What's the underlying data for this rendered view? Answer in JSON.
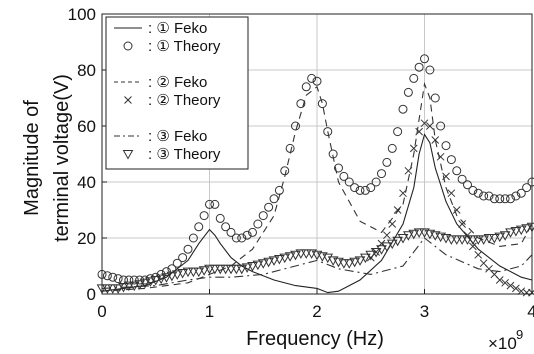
{
  "chart_data": {
    "type": "line",
    "xlabel": "Frequency (Hz)",
    "ylabel_lines": [
      "Magnitude of",
      "terminal voltage(V)"
    ],
    "x_exponent_label": "×10",
    "x_exponent_power": "9",
    "xlim": [
      0,
      4
    ],
    "ylim": [
      0,
      100
    ],
    "xticks": [
      "0",
      "1",
      "2",
      "3",
      "4"
    ],
    "yticks": [
      "0",
      "20",
      "40",
      "60",
      "80",
      "100"
    ],
    "grid": true,
    "legend_position": "top-left",
    "series": [
      {
        "name": ": ① Feko",
        "style": "solid",
        "color": "#222222",
        "x": [
          0,
          0.2,
          0.4,
          0.6,
          0.8,
          0.9,
          1.0,
          1.05,
          1.1,
          1.2,
          1.3,
          1.4,
          1.6,
          1.8,
          2.0,
          2.1,
          2.2,
          2.4,
          2.6,
          2.8,
          2.9,
          2.95,
          3.0,
          3.05,
          3.1,
          3.2,
          3.3,
          3.5,
          3.7,
          3.9,
          4.0
        ],
        "y": [
          1,
          2,
          3,
          6,
          12,
          18,
          23,
          21,
          18,
          13,
          10,
          8,
          5,
          3,
          2,
          0.5,
          1,
          5,
          12,
          25,
          38,
          50,
          57,
          54,
          45,
          33,
          25,
          16,
          10,
          6,
          5
        ]
      },
      {
        "name": ": ① Theory",
        "style": "marker-circle",
        "color": "#333333",
        "x": [
          0,
          0.05,
          0.1,
          0.15,
          0.2,
          0.25,
          0.3,
          0.35,
          0.4,
          0.45,
          0.5,
          0.55,
          0.6,
          0.65,
          0.7,
          0.75,
          0.8,
          0.85,
          0.9,
          0.95,
          1.0,
          1.05,
          1.1,
          1.15,
          1.2,
          1.25,
          1.3,
          1.35,
          1.4,
          1.45,
          1.5,
          1.55,
          1.6,
          1.65,
          1.7,
          1.75,
          1.8,
          1.85,
          1.9,
          1.95,
          2.0,
          2.05,
          2.1,
          2.15,
          2.2,
          2.25,
          2.3,
          2.35,
          2.4,
          2.45,
          2.5,
          2.55,
          2.6,
          2.65,
          2.7,
          2.75,
          2.8,
          2.85,
          2.9,
          2.95,
          3.0,
          3.05,
          3.1,
          3.15,
          3.2,
          3.25,
          3.3,
          3.35,
          3.4,
          3.45,
          3.5,
          3.55,
          3.6,
          3.65,
          3.7,
          3.75,
          3.8,
          3.85,
          3.9,
          3.95,
          4.0
        ],
        "y": [
          7,
          6.5,
          6,
          5.5,
          5,
          5,
          5,
          5,
          5,
          5.5,
          6,
          7,
          8,
          9,
          11,
          13,
          16,
          20,
          24,
          28,
          32,
          32,
          27,
          24,
          22,
          20,
          20,
          21,
          22,
          25,
          28,
          31,
          34,
          37,
          44,
          52,
          60,
          68,
          74,
          77,
          76,
          68,
          58,
          50,
          45,
          42,
          40,
          38,
          37,
          37,
          38,
          40,
          43,
          47,
          52,
          58,
          66,
          72,
          77,
          81,
          84,
          80,
          70,
          60,
          53,
          48,
          44,
          41,
          39,
          37,
          36,
          35,
          35,
          34,
          34,
          34,
          34,
          35,
          36,
          38,
          40
        ]
      },
      {
        "name": ": ② Feko",
        "style": "dashed",
        "color": "#333333",
        "x": [
          0,
          0.4,
          0.8,
          1.0,
          1.2,
          1.4,
          1.6,
          1.7,
          1.8,
          1.9,
          2.0,
          2.05,
          2.1,
          2.2,
          2.4,
          2.6,
          2.8,
          2.9,
          3.0,
          3.05,
          3.1,
          3.2,
          3.3,
          3.5,
          3.7,
          3.9,
          4.0
        ],
        "y": [
          1,
          2,
          4,
          7,
          10,
          16,
          28,
          42,
          58,
          71,
          74,
          68,
          58,
          40,
          26,
          22,
          32,
          50,
          75,
          70,
          55,
          38,
          28,
          20,
          17,
          18,
          25
        ]
      },
      {
        "name": ": ② Theory",
        "style": "marker-x",
        "color": "#333333",
        "x": [
          2.5,
          2.55,
          2.6,
          2.65,
          2.7,
          2.75,
          2.8,
          2.85,
          2.9,
          2.95,
          3.0,
          3.05,
          3.1,
          3.15,
          3.2,
          3.25,
          3.3,
          3.35,
          3.4,
          3.45,
          3.5,
          3.55,
          3.6,
          3.65,
          3.7,
          3.75,
          3.8,
          3.85,
          3.9,
          3.95,
          4.0
        ],
        "y": [
          13,
          15,
          18,
          21,
          25,
          30,
          36,
          44,
          52,
          58,
          61,
          60,
          55,
          49,
          42,
          36,
          30,
          25,
          21,
          17,
          14,
          11,
          9,
          7,
          5,
          4,
          3,
          2,
          1,
          0.5,
          0.5
        ]
      },
      {
        "name": ": ③ Feko",
        "style": "dashdot",
        "color": "#333333",
        "x": [
          0,
          0.5,
          0.8,
          1.0,
          1.2,
          1.5,
          1.8,
          2.0,
          2.2,
          2.5,
          2.8,
          3.0,
          3.2,
          3.5,
          3.7,
          3.9,
          4.0
        ],
        "y": [
          2,
          3,
          5,
          6,
          6,
          7,
          10,
          12,
          9,
          7,
          10,
          20,
          14,
          9,
          8,
          10,
          14
        ]
      },
      {
        "name": ": ③ Theory",
        "style": "marker-triangle",
        "color": "#333333",
        "x": [
          0,
          0.05,
          0.1,
          0.15,
          0.2,
          0.25,
          0.3,
          0.35,
          0.4,
          0.45,
          0.5,
          0.55,
          0.6,
          0.65,
          0.7,
          0.75,
          0.8,
          0.85,
          0.9,
          0.95,
          1.0,
          1.05,
          1.1,
          1.15,
          1.2,
          1.25,
          1.3,
          1.35,
          1.4,
          1.45,
          1.5,
          1.55,
          1.6,
          1.65,
          1.7,
          1.75,
          1.8,
          1.85,
          1.9,
          1.95,
          2.0,
          2.05,
          2.1,
          2.15,
          2.2,
          2.25,
          2.3,
          2.35,
          2.4,
          2.45,
          2.5,
          2.55,
          2.6,
          2.65,
          2.7,
          2.75,
          2.8,
          2.85,
          2.9,
          2.95,
          3.0,
          3.05,
          3.1,
          3.15,
          3.2,
          3.25,
          3.3,
          3.35,
          3.4,
          3.45,
          3.5,
          3.55,
          3.6,
          3.65,
          3.7,
          3.75,
          3.8,
          3.85,
          3.9,
          3.95,
          4.0
        ],
        "y": [
          2,
          2,
          2,
          2,
          2.5,
          3,
          3,
          3.5,
          4,
          4.5,
          5,
          5.5,
          6,
          6.5,
          7,
          7.5,
          8,
          8,
          8,
          8.5,
          9,
          9,
          9,
          9,
          9,
          9,
          9,
          9.5,
          10,
          10.5,
          11,
          11.5,
          12,
          12.5,
          13,
          13.5,
          14,
          14.5,
          14.5,
          14.5,
          14,
          13.5,
          13,
          12,
          11.5,
          11,
          11,
          11.5,
          12,
          13,
          14,
          15,
          16,
          17,
          18,
          19,
          20,
          21,
          21.5,
          22,
          22,
          21.5,
          21,
          20.5,
          20,
          19.5,
          19.5,
          19.5,
          19.5,
          19.5,
          19.5,
          19.5,
          20,
          20,
          20.5,
          21,
          22,
          22.5,
          23,
          23.5,
          24
        ]
      }
    ]
  }
}
